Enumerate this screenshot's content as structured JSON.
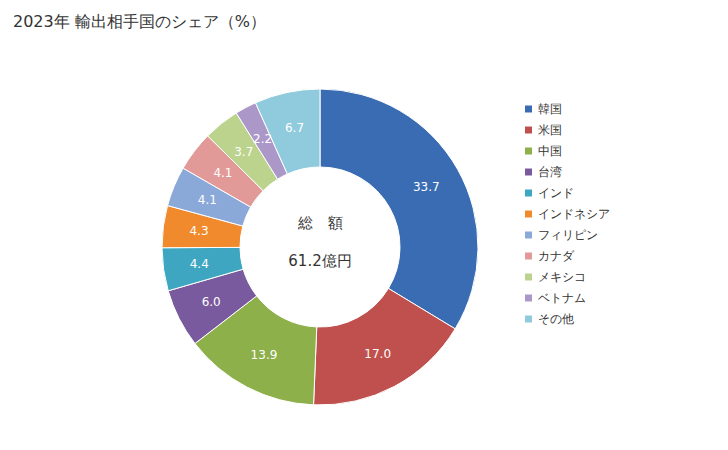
{
  "chart_data": {
    "type": "pie",
    "title": "2023年 輸出相手国のシェア（%）",
    "categories": [
      "韓国",
      "米国",
      "中国",
      "台湾",
      "インド",
      "インドネシア",
      "フィリピン",
      "カナダ",
      "メキシコ",
      "ベトナム",
      "その他"
    ],
    "values": [
      33.7,
      17.0,
      13.9,
      6.0,
      4.4,
      4.3,
      4.1,
      4.1,
      3.7,
      2.2,
      6.7
    ],
    "value_labels": [
      "33.7",
      "17.0",
      "13.9",
      "6.0",
      "4.4",
      "4.3",
      "4.1",
      "4.1",
      "3.7",
      "2.2",
      "6.7"
    ],
    "colors": [
      "#3a6cb3",
      "#c0504d",
      "#8db04a",
      "#7a5a9e",
      "#3fa6c2",
      "#f08a2c",
      "#8aa8d8",
      "#e29a98",
      "#bcd38e",
      "#ac98c8",
      "#8fcbdc"
    ],
    "data_labels": true,
    "legend": "right",
    "annotations": [
      "総　額",
      "61.2億円"
    ]
  }
}
